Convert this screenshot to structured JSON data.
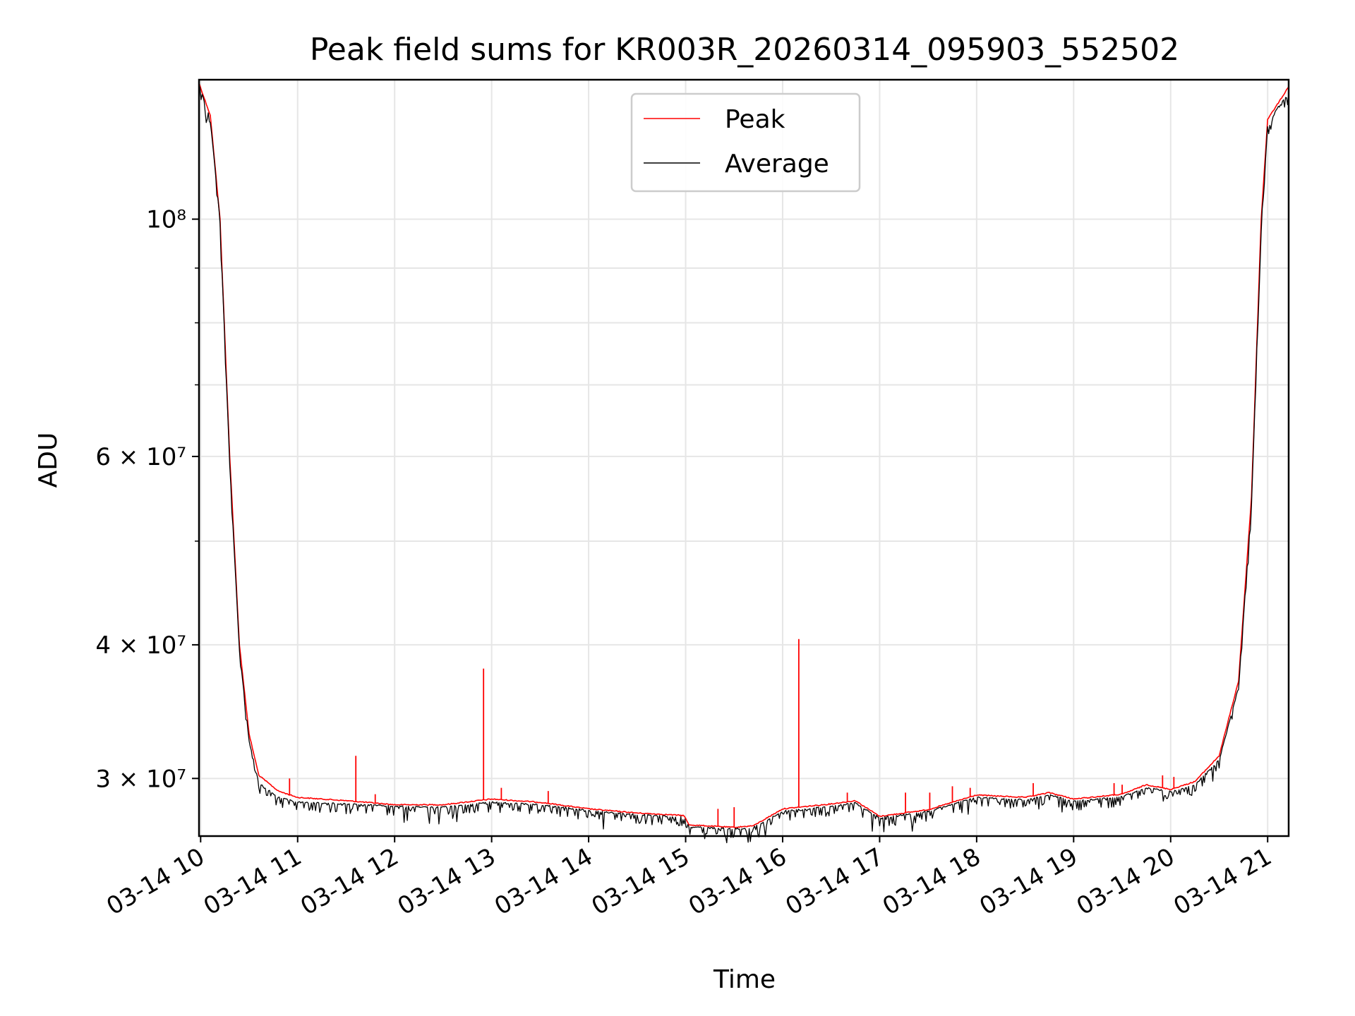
{
  "chart_data": {
    "type": "line",
    "title": "Peak field sums for KR003R_20260314_095903_552502",
    "xlabel": "Time",
    "ylabel": "ADU",
    "yscale": "log",
    "ylim": [
      26500000,
      135000000
    ],
    "xlim": [
      "2026-03-14 09:59",
      "2026-03-14 21:13"
    ],
    "grid": true,
    "legend_position": "top-center",
    "x_ticks": [
      {
        "x": "2026-03-14 10:00",
        "label": "03-14 10"
      },
      {
        "x": "2026-03-14 11:00",
        "label": "03-14 11"
      },
      {
        "x": "2026-03-14 12:00",
        "label": "03-14 12"
      },
      {
        "x": "2026-03-14 13:00",
        "label": "03-14 13"
      },
      {
        "x": "2026-03-14 14:00",
        "label": "03-14 14"
      },
      {
        "x": "2026-03-14 15:00",
        "label": "03-14 15"
      },
      {
        "x": "2026-03-14 16:00",
        "label": "03-14 16"
      },
      {
        "x": "2026-03-14 17:00",
        "label": "03-14 17"
      },
      {
        "x": "2026-03-14 18:00",
        "label": "03-14 18"
      },
      {
        "x": "2026-03-14 19:00",
        "label": "03-14 19"
      },
      {
        "x": "2026-03-14 20:00",
        "label": "03-14 20"
      },
      {
        "x": "2026-03-14 21:00",
        "label": "03-14 21"
      }
    ],
    "y_ticks": [
      {
        "y": 30000000,
        "label": "3 × 10⁷"
      },
      {
        "y": 40000000,
        "label": "4 × 10⁷"
      },
      {
        "y": 60000000,
        "label": "6 × 10⁷"
      },
      {
        "y": 100000000,
        "label": "10⁸"
      }
    ],
    "y_minor_ticks": [
      50000000,
      70000000,
      80000000,
      90000000
    ],
    "series": [
      {
        "name": "Peak",
        "color": "#ff0000",
        "points": [
          [
            "2026-03-14 09:59",
            134000000
          ],
          [
            "2026-03-14 10:06",
            125000000
          ],
          [
            "2026-03-14 10:12",
            100000000
          ],
          [
            "2026-03-14 10:18",
            60000000
          ],
          [
            "2026-03-14 10:24",
            40000000
          ],
          [
            "2026-03-14 10:30",
            33000000
          ],
          [
            "2026-03-14 10:36",
            30200000
          ],
          [
            "2026-03-14 10:48",
            29200000
          ],
          [
            "2026-03-14 11:00",
            28800000
          ],
          [
            "2026-03-14 11:30",
            28600000
          ],
          [
            "2026-03-14 12:00",
            28350000
          ],
          [
            "2026-03-14 12:30",
            28350000
          ],
          [
            "2026-03-14 13:00",
            28700000
          ],
          [
            "2026-03-14 13:30",
            28500000
          ],
          [
            "2026-03-14 14:00",
            28100000
          ],
          [
            "2026-03-14 14:30",
            27850000
          ],
          [
            "2026-03-14 14:59",
            27700000
          ],
          [
            "2026-03-14 15:02",
            27150000
          ],
          [
            "2026-03-14 15:30",
            27000000
          ],
          [
            "2026-03-14 15:42",
            27100000
          ],
          [
            "2026-03-14 16:00",
            28100000
          ],
          [
            "2026-03-14 16:30",
            28400000
          ],
          [
            "2026-03-14 16:45",
            28600000
          ],
          [
            "2026-03-14 17:00",
            27650000
          ],
          [
            "2026-03-14 17:30",
            28050000
          ],
          [
            "2026-03-14 18:00",
            28950000
          ],
          [
            "2026-03-14 18:30",
            28800000
          ],
          [
            "2026-03-14 18:45",
            29100000
          ],
          [
            "2026-03-14 19:00",
            28700000
          ],
          [
            "2026-03-14 19:30",
            29000000
          ],
          [
            "2026-03-14 19:45",
            29600000
          ],
          [
            "2026-03-14 20:00",
            29300000
          ],
          [
            "2026-03-14 20:15",
            29800000
          ],
          [
            "2026-03-14 20:30",
            31500000
          ],
          [
            "2026-03-14 20:42",
            37000000
          ],
          [
            "2026-03-14 20:50",
            55000000
          ],
          [
            "2026-03-14 20:56",
            100000000
          ],
          [
            "2026-03-14 21:00",
            124000000
          ],
          [
            "2026-03-14 21:06",
            128000000
          ],
          [
            "2026-03-14 21:13",
            133000000
          ]
        ],
        "spikes": [
          [
            "2026-03-14 10:55",
            30000000
          ],
          [
            "2026-03-14 11:36",
            31500000
          ],
          [
            "2026-03-14 11:48",
            29000000
          ],
          [
            "2026-03-14 12:55",
            38000000
          ],
          [
            "2026-03-14 13:06",
            29400000
          ],
          [
            "2026-03-14 13:35",
            29200000
          ],
          [
            "2026-03-14 15:20",
            28100000
          ],
          [
            "2026-03-14 15:30",
            28200000
          ],
          [
            "2026-03-14 16:10",
            40500000
          ],
          [
            "2026-03-14 16:40",
            29100000
          ],
          [
            "2026-03-14 17:16",
            29100000
          ],
          [
            "2026-03-14 17:31",
            29100000
          ],
          [
            "2026-03-14 17:45",
            29500000
          ],
          [
            "2026-03-14 17:56",
            29400000
          ],
          [
            "2026-03-14 18:35",
            29700000
          ],
          [
            "2026-03-14 19:25",
            29700000
          ],
          [
            "2026-03-14 19:30",
            29600000
          ],
          [
            "2026-03-14 19:55",
            30200000
          ],
          [
            "2026-03-14 20:02",
            30100000
          ]
        ]
      },
      {
        "name": "Average",
        "color": "#000000",
        "points": [
          [
            "2026-03-14 09:59",
            133500000
          ],
          [
            "2026-03-14 10:06",
            124000000
          ],
          [
            "2026-03-14 10:12",
            99500000
          ],
          [
            "2026-03-14 10:18",
            59000000
          ],
          [
            "2026-03-14 10:24",
            39500000
          ],
          [
            "2026-03-14 10:30",
            32500000
          ],
          [
            "2026-03-14 10:36",
            29700000
          ],
          [
            "2026-03-14 10:48",
            28800000
          ],
          [
            "2026-03-14 11:00",
            28500000
          ],
          [
            "2026-03-14 11:30",
            28400000
          ],
          [
            "2026-03-14 12:00",
            28250000
          ],
          [
            "2026-03-14 12:30",
            28200000
          ],
          [
            "2026-03-14 13:00",
            28500000
          ],
          [
            "2026-03-14 13:30",
            28350000
          ],
          [
            "2026-03-14 14:00",
            28000000
          ],
          [
            "2026-03-14 14:30",
            27750000
          ],
          [
            "2026-03-14 14:59",
            27600000
          ],
          [
            "2026-03-14 15:02",
            27050000
          ],
          [
            "2026-03-14 15:30",
            26900000
          ],
          [
            "2026-03-14 15:42",
            27000000
          ],
          [
            "2026-03-14 16:00",
            27950000
          ],
          [
            "2026-03-14 16:30",
            28250000
          ],
          [
            "2026-03-14 16:45",
            28450000
          ],
          [
            "2026-03-14 17:00",
            27550000
          ],
          [
            "2026-03-14 17:30",
            27950000
          ],
          [
            "2026-03-14 18:00",
            28800000
          ],
          [
            "2026-03-14 18:30",
            28650000
          ],
          [
            "2026-03-14 18:45",
            28950000
          ],
          [
            "2026-03-14 19:00",
            28550000
          ],
          [
            "2026-03-14 19:30",
            28850000
          ],
          [
            "2026-03-14 19:45",
            29400000
          ],
          [
            "2026-03-14 20:00",
            29150000
          ],
          [
            "2026-03-14 20:15",
            29600000
          ],
          [
            "2026-03-14 20:30",
            31200000
          ],
          [
            "2026-03-14 20:42",
            36500000
          ],
          [
            "2026-03-14 20:50",
            54000000
          ],
          [
            "2026-03-14 20:56",
            99000000
          ],
          [
            "2026-03-14 21:00",
            122000000
          ],
          [
            "2026-03-14 21:06",
            127000000
          ],
          [
            "2026-03-14 21:13",
            131000000
          ]
        ]
      }
    ]
  }
}
